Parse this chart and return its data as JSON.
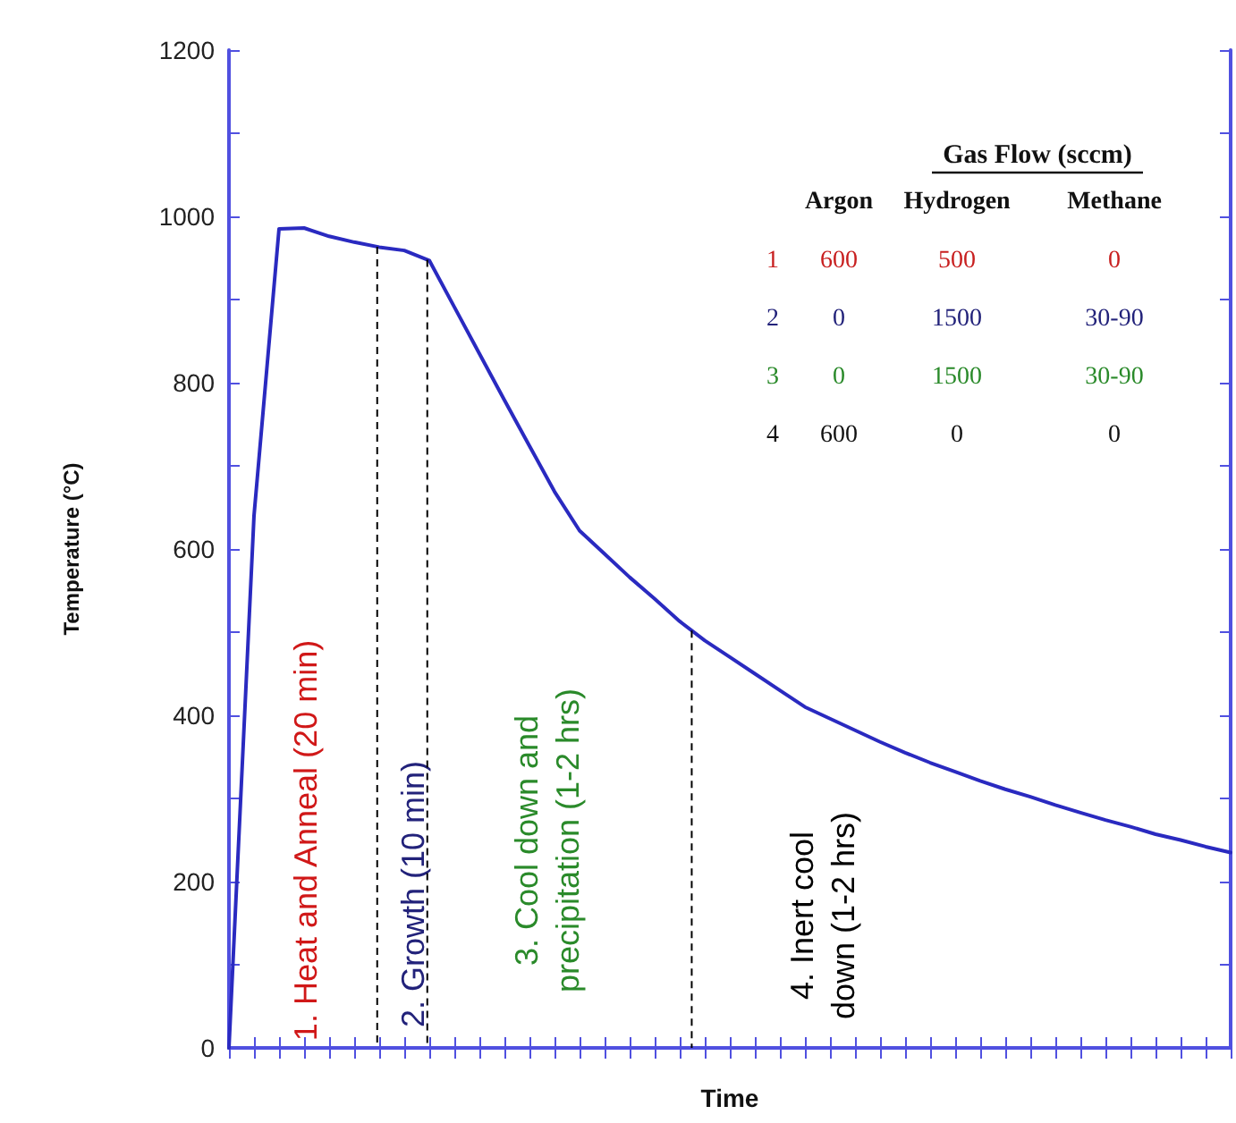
{
  "chart_data": {
    "type": "line",
    "xlabel": "Time",
    "ylabel": "Temperature (°C)",
    "categories": [
      null,
      null,
      null,
      null,
      null,
      null,
      null,
      null,
      null,
      null,
      null,
      null,
      null,
      null,
      null,
      null,
      null,
      null,
      null,
      null,
      null,
      null,
      null,
      null,
      null,
      null,
      null,
      null,
      null,
      null,
      null,
      null,
      null,
      null,
      null,
      null,
      null,
      null,
      null,
      null,
      null
    ],
    "series": [
      {
        "color": "#2a2ac0",
        "values": [
          0,
          640,
          985,
          986,
          976,
          969,
          963,
          959,
          947,
          891,
          835,
          779,
          724,
          669,
          622,
          594,
          566,
          540,
          513,
          490,
          470,
          450,
          430,
          410,
          396,
          382,
          368,
          355,
          343,
          332,
          321,
          311,
          302,
          292,
          283,
          274,
          266,
          257,
          250,
          242,
          235
        ]
      }
    ],
    "ylim": [
      0,
      1200
    ],
    "yticks": [
      0,
      {
        "value": 100,
        "label": null
      },
      200,
      {
        "value": 300,
        "label": null
      },
      400,
      {
        "value": 500,
        "label": null
      },
      600,
      {
        "value": 700,
        "label": null
      },
      800,
      {
        "value": 900,
        "label": null
      },
      1000,
      {
        "value": 1100,
        "label": null
      },
      1200
    ],
    "tick_labels": "y",
    "grid": false,
    "marker": "none",
    "annotations": [
      "1. Heat and Anneal (20 min)",
      "2. Growth (10 min)",
      "3. Cool down and\nprecipitation (1-2 hrs)",
      "4. Inert cool\ndown (1-2 hrs)",
      "Gas Flow (sccm)",
      "Argon",
      "Hydrogen",
      "Methane",
      "1",
      "600",
      "500",
      "0",
      "2",
      "0",
      "1500",
      "30-90",
      "3",
      "0",
      "1500",
      "30-90",
      "4",
      "600",
      "0",
      "0"
    ]
  }
}
